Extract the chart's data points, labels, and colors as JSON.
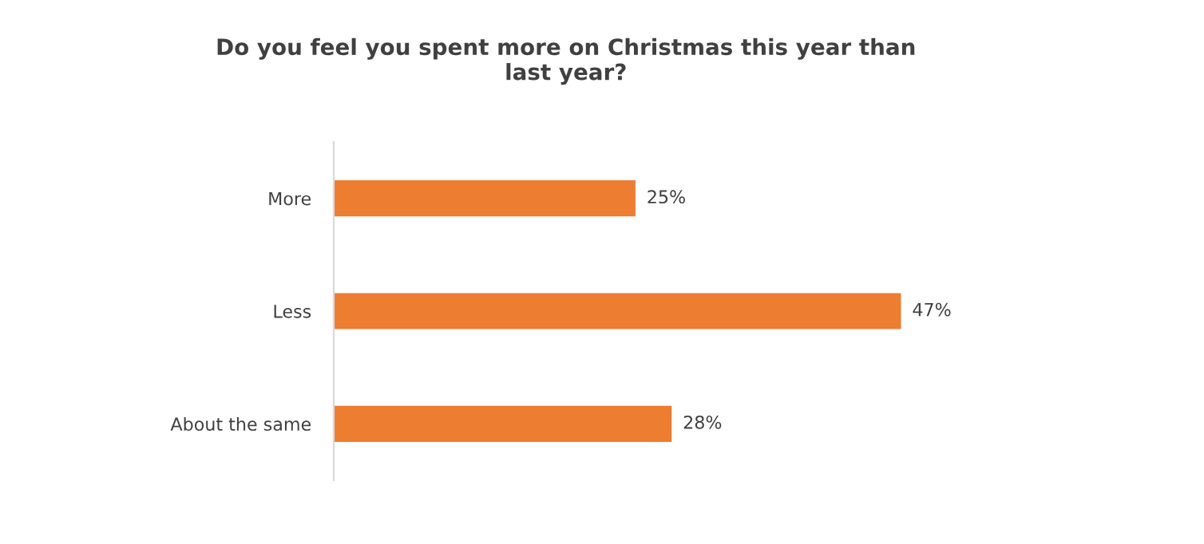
{
  "chart_data": {
    "type": "bar",
    "orientation": "horizontal",
    "title": "Do you feel you spent more on Christmas this year than last year?",
    "categories": [
      "More",
      "Less",
      "About the same"
    ],
    "values": [
      25,
      47,
      28
    ],
    "value_labels": [
      "25%",
      "47%",
      "28%"
    ],
    "color": "#ed7d31",
    "grid": false,
    "legend": false
  }
}
